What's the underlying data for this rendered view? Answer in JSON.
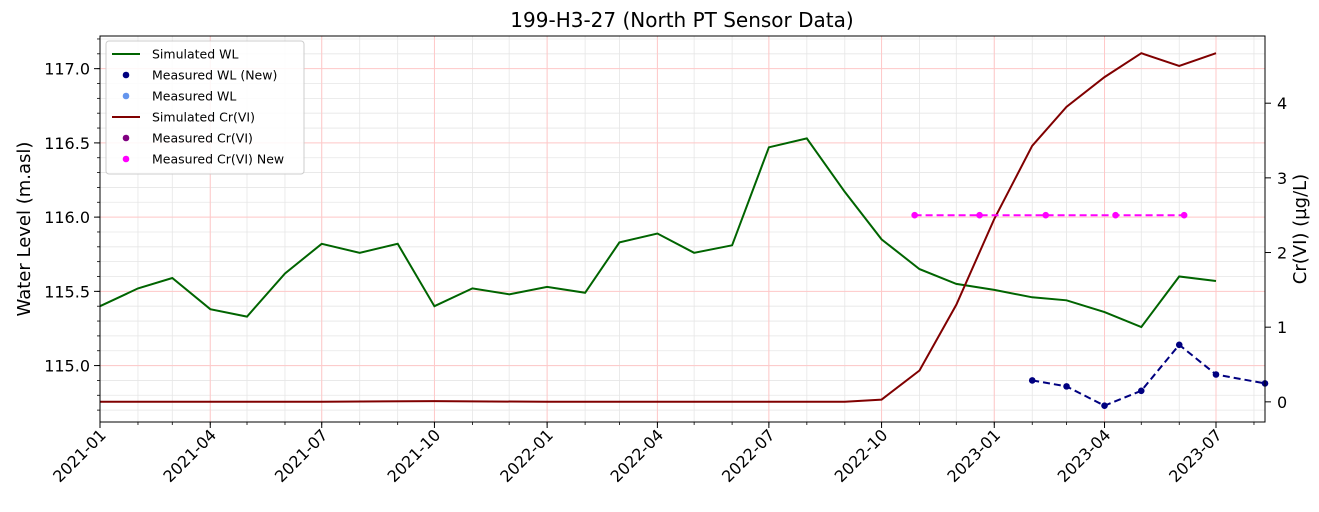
{
  "chart_data": {
    "type": "line",
    "title": "199-H3-27 (North PT Sensor Data)",
    "xlabel": "",
    "ylabel_left": "Water Level (m.asl)",
    "ylabel_right": "Cr(VI) (µg/L)",
    "xlim": [
      "2021-01-01",
      "2023-08-10"
    ],
    "ylim_left": [
      114.62,
      117.22
    ],
    "ylim_right": [
      -0.27,
      4.9
    ],
    "x_ticks": [
      "2021-01",
      "2021-04",
      "2021-07",
      "2021-10",
      "2022-01",
      "2022-04",
      "2022-07",
      "2022-10",
      "2023-01",
      "2023-04",
      "2023-07"
    ],
    "y_ticks_left": [
      "115.0",
      "115.5",
      "116.0",
      "116.5",
      "117.0"
    ],
    "y_ticks_right": [
      "0",
      "1",
      "2",
      "3",
      "4"
    ],
    "grid": true,
    "legend_position": "top-left",
    "series": [
      {
        "name": "Simulated WL",
        "axis": "left",
        "style": "line",
        "color": "#006400",
        "x": [
          "2021-01-01",
          "2021-02-01",
          "2021-03-01",
          "2021-04-01",
          "2021-05-01",
          "2021-06-01",
          "2021-07-01",
          "2021-08-01",
          "2021-09-01",
          "2021-10-01",
          "2021-11-01",
          "2021-12-01",
          "2022-01-01",
          "2022-02-01",
          "2022-03-01",
          "2022-04-01",
          "2022-05-01",
          "2022-06-01",
          "2022-07-01",
          "2022-08-01",
          "2022-09-01",
          "2022-10-01",
          "2022-11-01",
          "2022-12-01",
          "2023-01-01",
          "2023-02-01",
          "2023-03-01",
          "2023-04-01",
          "2023-05-01",
          "2023-06-01",
          "2023-07-01"
        ],
        "y": [
          115.4,
          115.52,
          115.59,
          115.38,
          115.33,
          115.62,
          115.82,
          115.76,
          115.82,
          115.4,
          115.52,
          115.48,
          115.53,
          115.49,
          115.83,
          115.89,
          115.76,
          115.81,
          116.47,
          116.53,
          116.17,
          115.85,
          115.65,
          115.55,
          115.51,
          115.46,
          115.44,
          115.36,
          115.26,
          115.6,
          115.57
        ]
      },
      {
        "name": "Measured WL (New)",
        "axis": "left",
        "style": "dashed-markers",
        "color": "#000080",
        "x": [
          "2023-02-01",
          "2023-03-01",
          "2023-04-01",
          "2023-05-01",
          "2023-06-01",
          "2023-07-01",
          "2023-08-10"
        ],
        "y": [
          114.9,
          114.86,
          114.73,
          114.83,
          115.14,
          114.94,
          114.88
        ]
      },
      {
        "name": "Measured WL",
        "axis": "left",
        "style": "markers",
        "color": "#6495ED",
        "x": [],
        "y": []
      },
      {
        "name": "Simulated Cr(VI)",
        "axis": "right",
        "style": "line",
        "color": "#800000",
        "x": [
          "2021-01-01",
          "2021-04-01",
          "2021-07-01",
          "2021-10-01",
          "2022-01-01",
          "2022-04-01",
          "2022-07-01",
          "2022-09-01",
          "2022-10-01",
          "2022-11-01",
          "2022-12-01",
          "2023-01-01",
          "2023-02-01",
          "2023-03-01",
          "2023-04-01",
          "2023-05-01",
          "2023-06-01",
          "2023-07-01"
        ],
        "y": [
          0,
          0,
          0,
          0.01,
          0,
          0,
          0,
          0,
          0.03,
          0.42,
          1.3,
          2.45,
          3.43,
          3.95,
          4.35,
          4.67,
          4.5,
          4.67
        ]
      },
      {
        "name": "Measured Cr(VI)",
        "axis": "right",
        "style": "markers",
        "color": "#800080",
        "x": [],
        "y": []
      },
      {
        "name": "Measured Cr(VI) New",
        "axis": "right",
        "style": "dashed-markers",
        "color": "#FF00FF",
        "x": [
          "2022-10-28",
          "2022-12-20",
          "2023-02-12",
          "2023-04-10",
          "2023-06-05"
        ],
        "y": [
          2.5,
          2.5,
          2.5,
          2.5,
          2.5
        ]
      }
    ]
  }
}
